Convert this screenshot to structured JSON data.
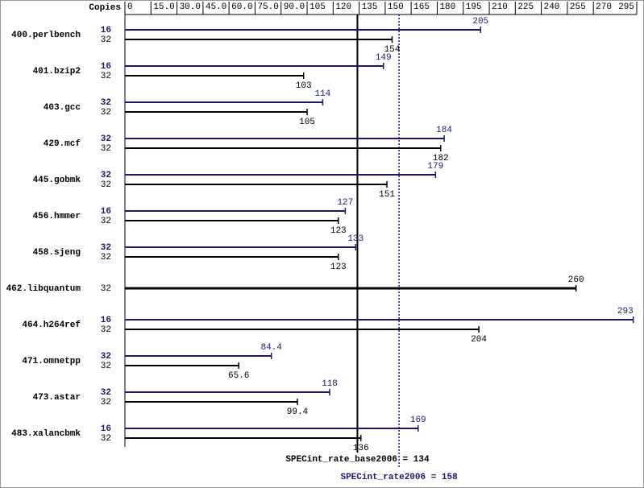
{
  "chart_data": {
    "type": "paired-bar",
    "copies_header": "Copies",
    "categories": [
      "400.perlbench",
      "401.bzip2",
      "403.gcc",
      "429.mcf",
      "445.gobmk",
      "456.hmmer",
      "458.sjeng",
      "462.libquantum",
      "464.h264ref",
      "471.omnetpp",
      "473.astar",
      "483.xalancbmk"
    ],
    "series": [
      {
        "color": "#191970",
        "copies": [
          16,
          16,
          32,
          32,
          32,
          16,
          32,
          null,
          16,
          32,
          32,
          16
        ],
        "values": [
          205,
          149,
          114,
          184,
          179,
          127,
          133,
          null,
          293,
          84.4,
          118,
          169
        ]
      },
      {
        "color": "#000000",
        "copies": [
          32,
          32,
          32,
          32,
          32,
          32,
          32,
          32,
          32,
          32,
          32,
          32
        ],
        "values": [
          154,
          103,
          105,
          182,
          151,
          123,
          123,
          260,
          204,
          65.6,
          99.4,
          136
        ]
      }
    ],
    "xlim": [
      0,
      295
    ],
    "xticks": [
      0,
      {
        "value": 15,
        "label": "15.0"
      },
      {
        "value": 30,
        "label": "30.0"
      },
      {
        "value": 45,
        "label": "45.0"
      },
      {
        "value": 60,
        "label": "60.0"
      },
      {
        "value": 75,
        "label": "75.0"
      },
      {
        "value": 90,
        "label": "90.0"
      },
      105,
      120,
      135,
      150,
      165,
      180,
      195,
      210,
      225,
      240,
      255,
      270,
      295
    ],
    "reference_lines": [
      {
        "label": "SPECint_rate_base2006 = 134",
        "value": 134,
        "color": "#000000",
        "style": "solid"
      },
      {
        "label": "SPECint_rate2006 = 158",
        "value": 158,
        "color": "#191970",
        "style": "dotted"
      }
    ]
  }
}
